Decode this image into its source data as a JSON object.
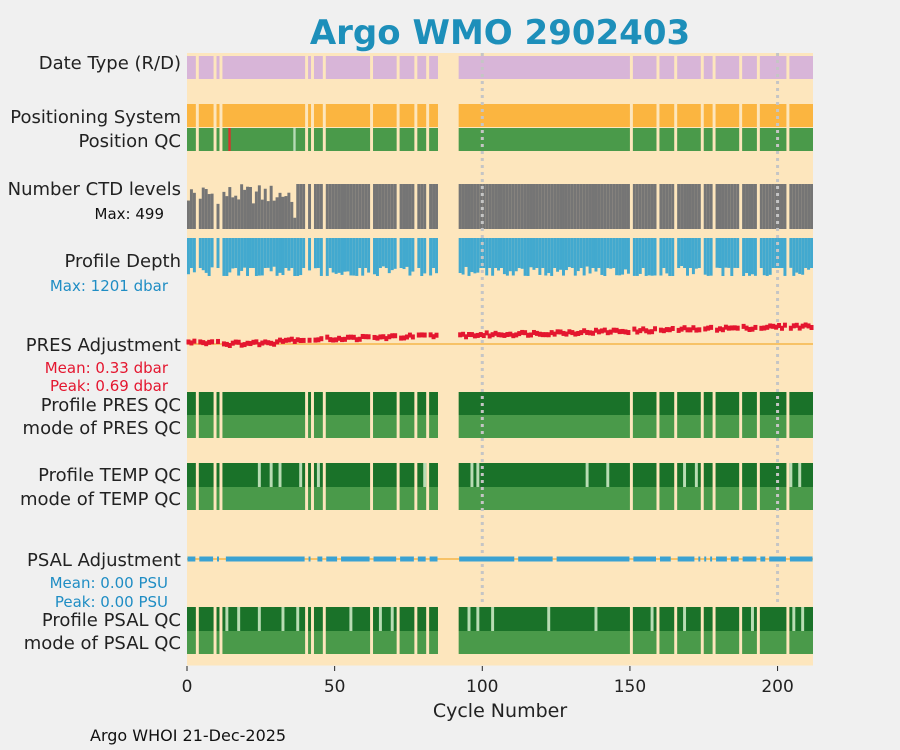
{
  "chart_data": {
    "type": "strip",
    "title": "Argo WMO 2902403",
    "xlabel": "Cycle Number",
    "xlim": [
      0,
      212
    ],
    "xticks": [
      0,
      50,
      100,
      150,
      200
    ],
    "vlines": [
      100,
      200
    ],
    "footer": "Argo WHOI 21-Dec-2025",
    "gaps": [
      [
        85,
        92
      ]
    ],
    "missing_cycles": [
      3,
      9,
      11,
      40,
      42,
      46,
      62,
      71,
      77,
      81,
      150,
      159,
      165,
      174,
      178,
      187,
      193,
      203
    ],
    "rows": {
      "date_type": {
        "label": "Date Type (R/D)",
        "color": "#d8b5d8"
      },
      "positioning": {
        "label": "Positioning System",
        "color": "#fbb540"
      },
      "position_qc": {
        "label": "Position QC",
        "color": "#4a9a4a",
        "flags": [
          {
            "cycle": 14,
            "color": "#d9322c"
          },
          {
            "cycle": 36,
            "color": "#b7dbb7"
          }
        ]
      },
      "ctd_levels": {
        "label": "Number CTD levels",
        "note": "Max: 499",
        "max": 499,
        "color": "#757575"
      },
      "profile_depth": {
        "label": "Profile Depth",
        "note": "Max: 1201 dbar",
        "max": 1201,
        "color": "#42a9cf",
        "note_color": "#1f8dc4"
      },
      "pres_adjustment": {
        "label": "PRES Adjustment",
        "mean": "Mean: 0.33 dbar",
        "peak": "Peak: 0.69 dbar",
        "mean_value": 0.33,
        "peak_value": 0.69,
        "color": "#e4162f",
        "zero_color": "#f5b64a"
      },
      "pres_qc": {
        "label1": "Profile PRES QC",
        "label2": "mode of PRES QC",
        "top_color": "#1a7229",
        "bottom_color": "#4a9a4a"
      },
      "temp_qc": {
        "label1": "Profile TEMP QC",
        "label2": "mode of TEMP QC",
        "top_color": "#1a7229",
        "bottom_color": "#4a9a4a",
        "light_cycles": [
          24,
          28,
          31,
          38,
          44,
          80,
          96,
          98,
          135,
          142,
          168,
          172,
          204,
          207
        ]
      },
      "psal_adjustment": {
        "label": "PSAL Adjustment",
        "mean": "Mean: 0.00 PSU",
        "peak": "Peak: 0.00 PSU",
        "mean_value": 0.0,
        "peak_value": 0.0,
        "color": "#3aa2d2",
        "zero_color": "#f5b64a",
        "break_cycles": [
          12,
          43,
          51,
          88,
          111,
          124,
          164,
          172,
          176,
          183,
          196
        ]
      },
      "psal_qc": {
        "label1": "Profile PSAL QC",
        "label2": "mode of PSAL QC",
        "top_color": "#1a7229",
        "bottom_color": "#4a9a4a",
        "light_cycles": [
          13,
          17,
          24,
          32,
          37,
          55,
          65,
          69,
          95,
          98,
          103,
          122,
          138,
          157,
          168,
          191,
          205,
          208
        ]
      }
    }
  }
}
